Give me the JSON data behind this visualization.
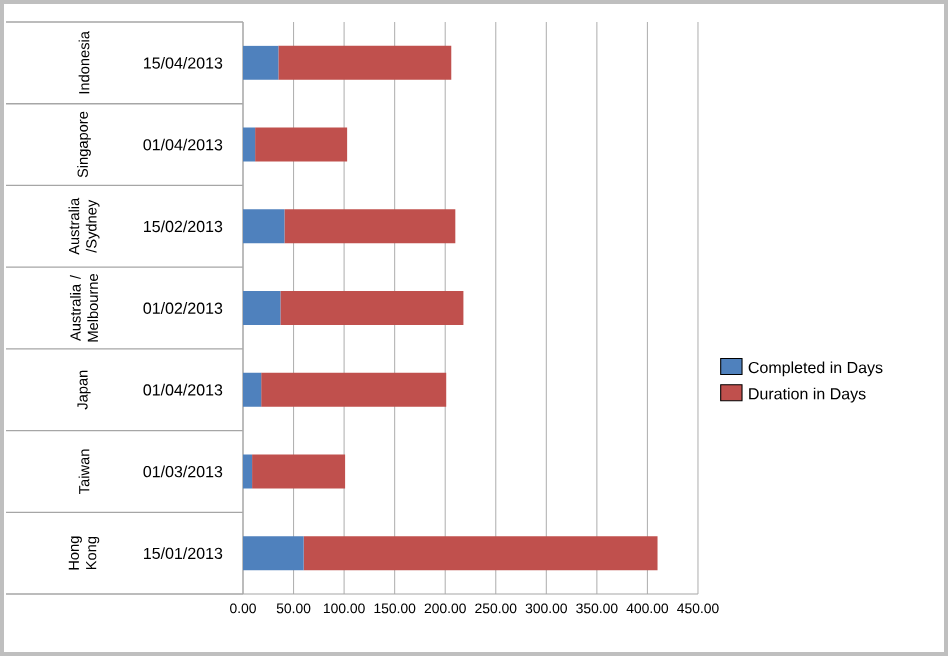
{
  "chart_data": {
    "type": "bar",
    "orientation": "horizontal",
    "stacked": true,
    "categories": [
      "15/04/2013",
      "01/04/2013",
      "15/02/2013",
      "01/02/2013",
      "01/04/2013",
      "01/03/2013",
      "15/01/2013"
    ],
    "annotations": [
      "Indonesia",
      "Singapore",
      "Australia /Sydney",
      "Australia / Melbourne",
      "Japan",
      "Taiwan",
      "Hong Kong"
    ],
    "series": [
      {
        "name": "Completed in Days",
        "color": "#4f81bd",
        "values": [
          35,
          12,
          41,
          37,
          18,
          9,
          60
        ]
      },
      {
        "name": "Duration in Days",
        "color": "#c0504d",
        "values": [
          171,
          91,
          169,
          181,
          183,
          92,
          350
        ]
      }
    ],
    "xlim": [
      0,
      450
    ],
    "xticks": [
      {
        "value": 0,
        "label": "0.00"
      },
      {
        "value": 50,
        "label": "50.00"
      },
      {
        "value": 100,
        "label": "100.00"
      },
      {
        "value": 150,
        "label": "150.00"
      },
      {
        "value": 200,
        "label": "200.00"
      },
      {
        "value": 250,
        "label": "250.00"
      },
      {
        "value": 300,
        "label": "300.00"
      },
      {
        "value": 350,
        "label": "350.00"
      },
      {
        "value": 400,
        "label": "400.00"
      },
      {
        "value": 450,
        "label": "450.00"
      }
    ],
    "grid": "x",
    "legend": "right"
  }
}
